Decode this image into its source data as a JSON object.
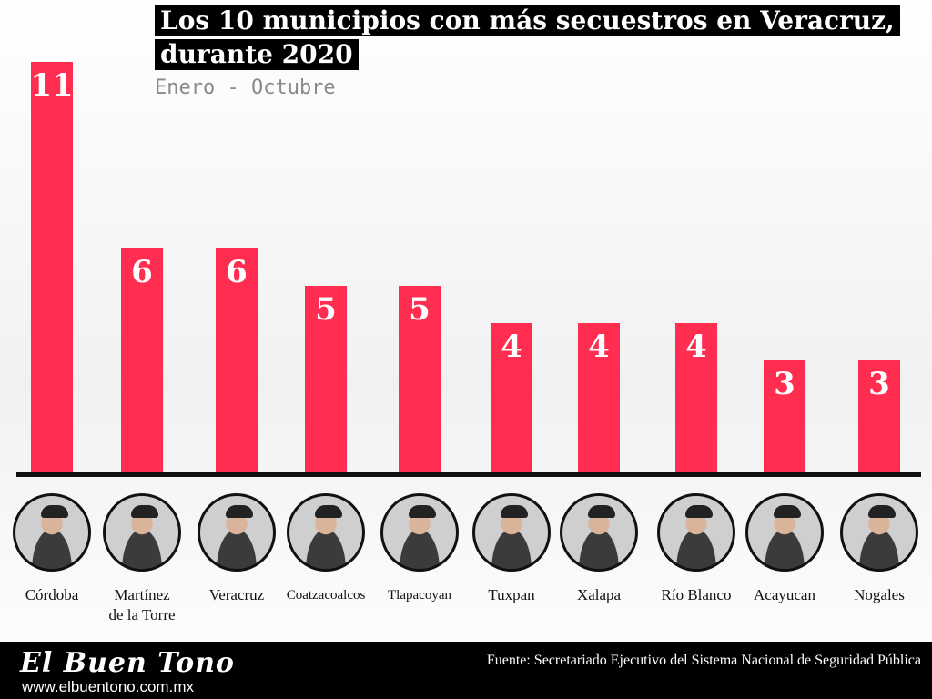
{
  "chart_data": {
    "type": "bar",
    "title_line1": "Los 10 municipios con más secuestros en Veracruz,",
    "title_line2": "durante 2020",
    "subtitle": "Enero - Octubre",
    "categories": [
      "Córdoba",
      "Martínez de la Torre",
      "Veracruz",
      "Coatzacoalcos",
      "Tlapacoyan",
      "Tuxpan",
      "Xalapa",
      "Río Blanco",
      "Acayucan",
      "Nogales"
    ],
    "category_lines": [
      [
        "Córdoba"
      ],
      [
        "Martínez",
        "de la Torre"
      ],
      [
        "Veracruz"
      ],
      [
        "Coatzacoalcos"
      ],
      [
        "Tlapacoyan"
      ],
      [
        "Tuxpan"
      ],
      [
        "Xalapa"
      ],
      [
        "Río Blanco"
      ],
      [
        "Acayucan"
      ],
      [
        "Nogales"
      ]
    ],
    "values": [
      11,
      6,
      6,
      5,
      5,
      4,
      4,
      4,
      3,
      3
    ],
    "value_labels": [
      "11",
      "6",
      "6",
      "5",
      "5",
      "4",
      "4",
      "4",
      "3",
      "3"
    ],
    "ylim": [
      0,
      11
    ],
    "bar_color": "#ff2d4f",
    "grid": false,
    "legend": "none"
  },
  "footer": {
    "brand": "El Buen Tono",
    "site": "www.elbuentono.com.mx",
    "source": "Fuente: Secretariado Ejecutivo del Sistema Nacional de Seguridad Pública"
  }
}
